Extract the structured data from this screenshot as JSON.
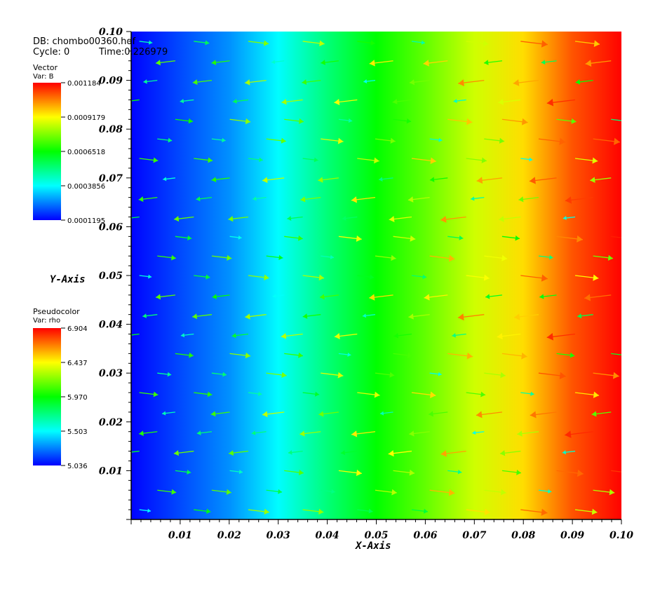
{
  "header": {
    "db_text": "DB: chombo00360.hdf",
    "cycle_text": "Cycle: 0",
    "time_text": "Time:0.226979"
  },
  "legends": {
    "vector": {
      "title": "Vector",
      "var": "Var: B",
      "labels": [
        "0.001184",
        "0.0009179",
        "0.0006518",
        "0.0003856",
        "0.0001195"
      ],
      "min": 0.0001195,
      "max": 0.001184
    },
    "pseudocolor": {
      "title": "Pseudocolor",
      "var": "Var: rho",
      "labels": [
        "6.904",
        "6.437",
        "5.970",
        "5.503",
        "5.036"
      ],
      "min": 5.036,
      "max": 6.904
    }
  },
  "colormap": [
    "#0000ff",
    "#00ffff",
    "#00ff00",
    "#ffff00",
    "#ff0000"
  ],
  "chart_data": {
    "type": "heatmap",
    "title": "",
    "xlabel": "X-Axis",
    "ylabel": "Y-Axis",
    "xlim": [
      0.0,
      0.1
    ],
    "ylim": [
      0.0,
      0.1
    ],
    "xticks": [
      "0.01",
      "0.02",
      "0.03",
      "0.04",
      "0.05",
      "0.06",
      "0.07",
      "0.08",
      "0.09",
      "0.10"
    ],
    "yticks": [
      "0.01",
      "0.02",
      "0.03",
      "0.04",
      "0.05",
      "0.06",
      "0.07",
      "0.08",
      "0.09",
      "0.10"
    ],
    "rho_profile_x": [
      0.0,
      0.02,
      0.03,
      0.04,
      0.05,
      0.06,
      0.07,
      0.08,
      0.09,
      0.1
    ],
    "rho_profile_values": [
      5.04,
      5.3,
      5.5,
      5.75,
      5.97,
      6.15,
      6.35,
      6.5,
      6.75,
      6.9
    ],
    "vector_field": {
      "var": "B",
      "magnitude_range": [
        0.0001195,
        0.001184
      ]
    }
  }
}
